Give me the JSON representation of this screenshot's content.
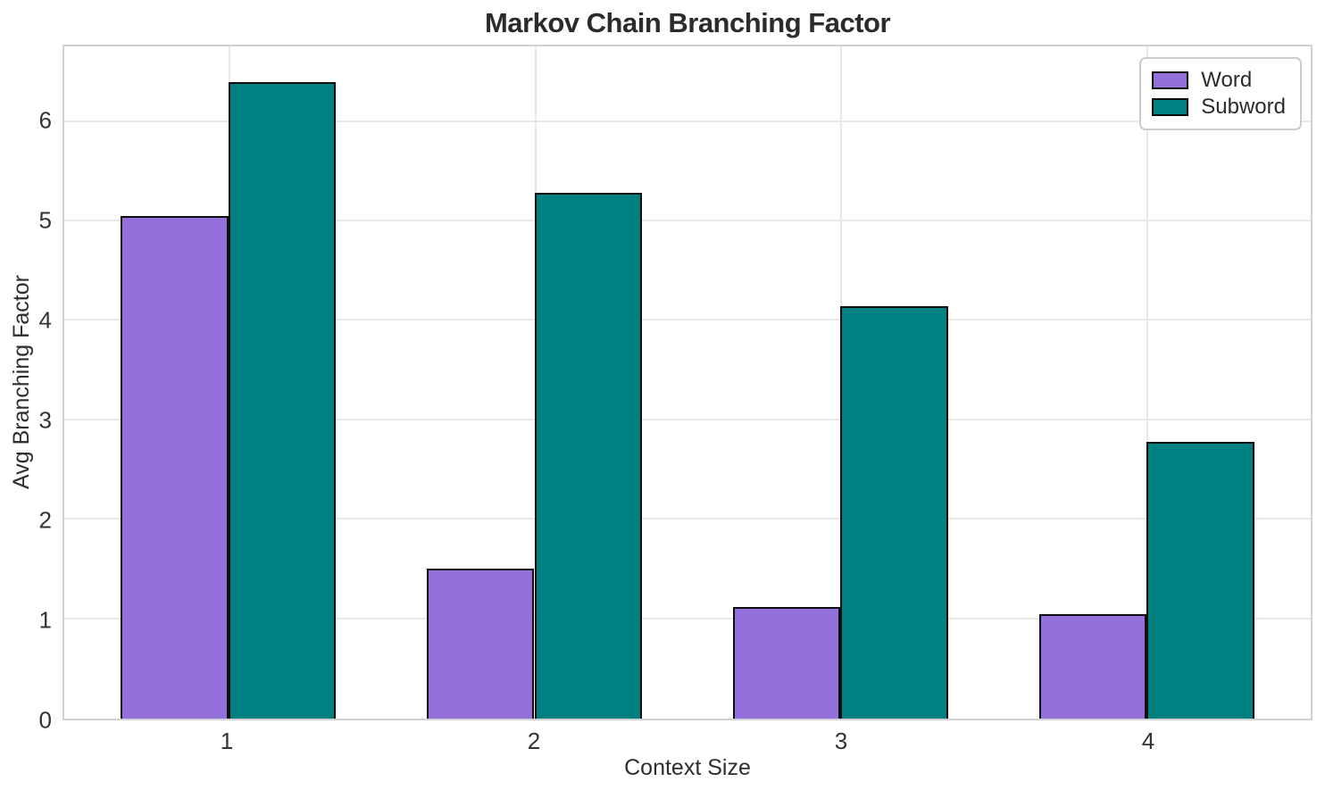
{
  "chart_data": {
    "type": "bar",
    "title": "Markov Chain Branching Factor",
    "xlabel": "Context Size",
    "ylabel": "Avg Branching Factor",
    "categories": [
      "1",
      "2",
      "3",
      "4"
    ],
    "series": [
      {
        "name": "Word",
        "color": "#9370DB",
        "values": [
          5.05,
          1.51,
          1.12,
          1.05
        ]
      },
      {
        "name": "Subword",
        "color": "#008080",
        "values": [
          6.4,
          5.29,
          4.15,
          2.78
        ]
      }
    ],
    "yticks": [
      0,
      1,
      2,
      3,
      4,
      5,
      6
    ],
    "ylim": [
      0,
      6.76
    ],
    "bar_width": 0.35,
    "bar_edge_color": "#0d0d0d",
    "grid": true,
    "legend_position": "upper right",
    "background_color": "#ffffff",
    "grid_color": "#e9e9e9",
    "text_color": "#2b2b2b"
  }
}
